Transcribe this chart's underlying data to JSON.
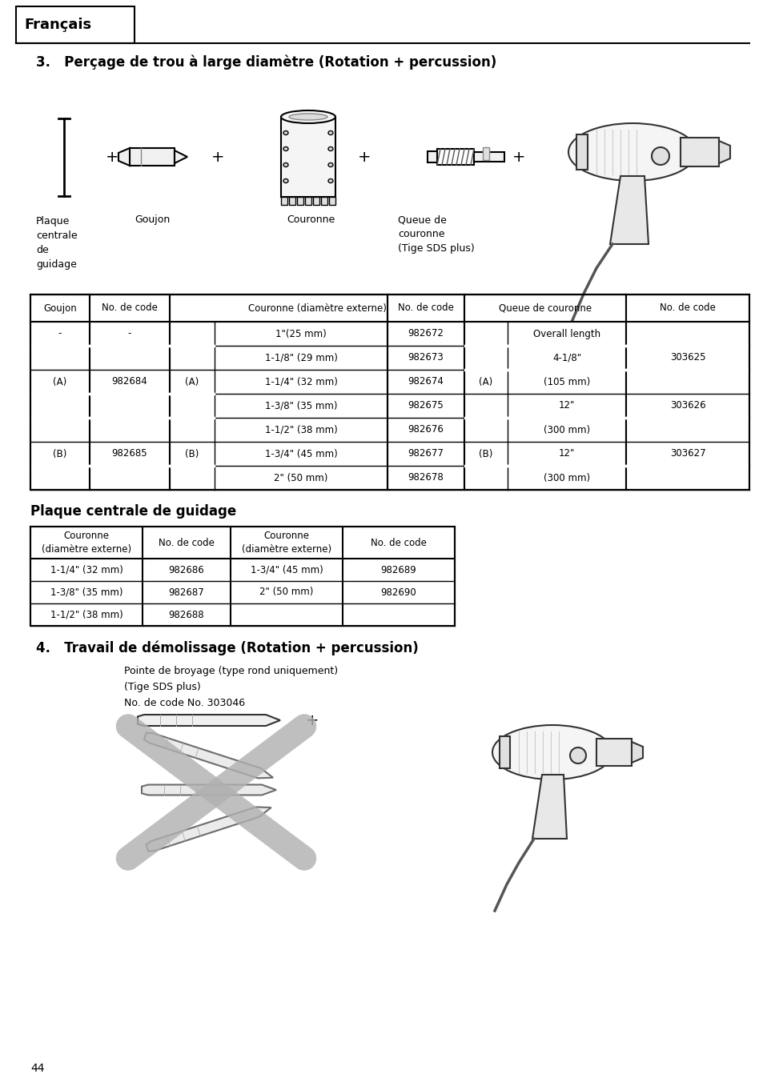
{
  "page_bg": "#ffffff",
  "header_text": "Français",
  "section3_title": "3.   Perçage de trou à large diamètre (Rotation + percussion)",
  "section4_title": "4.   Travail de démolissage (Rotation + percussion)",
  "demolissage_text": "Pointe de broyage (type rond uniquement)\n(Tige SDS plus)\nNo. de code No. 303046",
  "plaque_title": "Plaque centrale de guidage",
  "page_number": "44",
  "table1_row_data": [
    [
      "-",
      "-",
      "",
      "1\"(25 mm)",
      "982672",
      "",
      "Overall length",
      ""
    ],
    [
      "",
      "",
      "",
      "1-1/8\" (29 mm)",
      "982673",
      "",
      "4-1/8\"",
      "303625"
    ],
    [
      "(A)",
      "982684",
      "(A)",
      "1-1/4\" (32 mm)",
      "982674",
      "(A)",
      "(105 mm)",
      ""
    ],
    [
      "",
      "",
      "",
      "1-3/8\" (35 mm)",
      "982675",
      "",
      "12\"",
      "303626"
    ],
    [
      "",
      "",
      "",
      "1-1/2\" (38 mm)",
      "982676",
      "",
      "(300 mm)",
      ""
    ],
    [
      "(B)",
      "982685",
      "(B)",
      "1-3/4\" (45 mm)",
      "982677",
      "(B)",
      "12\"",
      "303627"
    ],
    [
      "",
      "",
      "",
      "2\" (50 mm)",
      "982678",
      "",
      "(300 mm)",
      ""
    ]
  ],
  "table2_row_data": [
    [
      "1-1/4\" (32 mm)",
      "982686",
      "1-3/4\" (45 mm)",
      "982689"
    ],
    [
      "1-3/8\" (35 mm)",
      "982687",
      "2\" (50 mm)",
      "982690"
    ],
    [
      "1-1/2\" (38 mm)",
      "982688",
      "",
      ""
    ]
  ]
}
